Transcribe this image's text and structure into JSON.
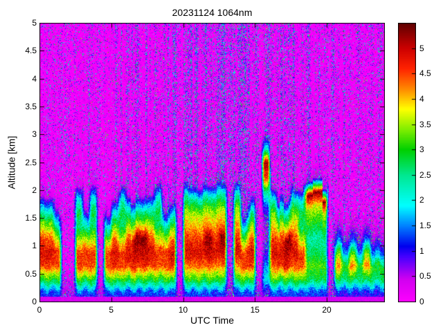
{
  "chart_data": {
    "type": "heatmap",
    "title": "20231124 1064nm",
    "xlabel": "UTC Time",
    "ylabel": "Altitude [km]",
    "x_range": [
      0,
      24
    ],
    "y_range": [
      0,
      5
    ],
    "x_ticks": [
      0,
      5,
      10,
      15,
      20
    ],
    "x_tick_labels": [
      "0",
      "5",
      "10",
      "15",
      "20"
    ],
    "y_ticks": [
      0,
      0.5,
      1,
      1.5,
      2,
      2.5,
      3,
      3.5,
      4,
      4.5,
      5
    ],
    "y_tick_labels": [
      "0",
      "0.5",
      "1",
      "1.5",
      "2",
      "2.5",
      "3",
      "3.5",
      "4",
      "4.5",
      "5"
    ],
    "colorbar": {
      "min": 0,
      "max": 5.5,
      "ticks": [
        0,
        0.5,
        1,
        1.5,
        2,
        2.5,
        3,
        3.5,
        4,
        4.5,
        5
      ],
      "tick_labels": [
        "0",
        "0.5",
        "1",
        "1.5",
        "2",
        "2.5",
        "3",
        "3.5",
        "4",
        "4.5",
        "5"
      ]
    },
    "colormap_stops": [
      [
        0.0,
        "#ff00ff"
      ],
      [
        0.45,
        "#d100f0"
      ],
      [
        0.9,
        "#4400ff"
      ],
      [
        1.1,
        "#0000ee"
      ],
      [
        1.5,
        "#0080ff"
      ],
      [
        1.9,
        "#00ffff"
      ],
      [
        2.5,
        "#00e890"
      ],
      [
        3.0,
        "#00d000"
      ],
      [
        3.4,
        "#80ee00"
      ],
      [
        3.8,
        "#ffff00"
      ],
      [
        4.2,
        "#ff8800"
      ],
      [
        4.6,
        "#ff2200"
      ],
      [
        5.0,
        "#cc0000"
      ],
      [
        5.5,
        "#5c0000"
      ]
    ],
    "grid": {
      "time_step_hours": 0.5,
      "alt_step_km": 0.25,
      "profiles": {
        "deep": [
          1.2,
          3,
          4.6,
          4.9,
          4.4,
          3.3,
          2,
          0.3,
          0.12,
          0.12,
          0.12,
          0.12,
          0.12,
          0.12,
          0.12,
          0.12,
          0.12,
          0.12,
          0.12,
          0.12
        ],
        "deepC": [
          1.2,
          3,
          4.7,
          5,
          5.3,
          3.6,
          2.2,
          0.4,
          0.12,
          0.12,
          0.12,
          0.12,
          0.12,
          0.12,
          0.12,
          0.12,
          0.12,
          0.12,
          0.12,
          0.12
        ],
        "med": [
          1.2,
          3,
          4.5,
          4.6,
          3.4,
          2,
          0.4,
          0.12,
          0.12,
          0.12,
          0.12,
          0.12,
          0.12,
          0.12,
          0.12,
          0.12,
          0.12,
          0.12,
          0.12,
          0.12
        ],
        "high": [
          1.2,
          3,
          4.3,
          4.9,
          4.6,
          4,
          3.4,
          2.2,
          0.3,
          0.12,
          0.12,
          0.12,
          0.12,
          0.12,
          0.12,
          0.12,
          0.12,
          0.12,
          0.12,
          0.12
        ],
        "highC": [
          1.2,
          3,
          4.4,
          5,
          5.3,
          4.2,
          3.5,
          2.3,
          0.3,
          0.12,
          0.12,
          0.12,
          0.12,
          0.12,
          0.12,
          0.12,
          0.12,
          0.12,
          0.12,
          0.12
        ],
        "spike": [
          1.2,
          3,
          4.5,
          4.6,
          3.6,
          2.6,
          2.8,
          2,
          0.3,
          0.12,
          0.12,
          0.12,
          0.12,
          0.12,
          0.12,
          0.12,
          0.12,
          0.12,
          0.12,
          0.12
        ],
        "low": [
          1,
          2.6,
          3,
          1.4,
          0.5,
          0.2,
          0.12,
          0.12,
          0.12,
          0.12,
          0.12,
          0.12,
          0.12,
          0.12,
          0.12,
          0.12,
          0.12,
          0.12,
          0.12,
          0.12
        ],
        "lowR": [
          1,
          2.8,
          4.3,
          3.2,
          1.2,
          0.4,
          0.12,
          0.12,
          0.12,
          0.12,
          0.12,
          0.12,
          0.12,
          0.12,
          0.12,
          0.12,
          0.12,
          0.12,
          0.12,
          0.12
        ],
        "gap": [
          0.5,
          0.3,
          0.05,
          0.05,
          0.05,
          0.05,
          0.05,
          0.05,
          0.05,
          0.05,
          0.05,
          0.05,
          0.05,
          0.05,
          0.05,
          0.05,
          0.05,
          0.05,
          0.05,
          0.05
        ],
        "cloud19": [
          1.2,
          2.8,
          3.2,
          2.6,
          2.4,
          3,
          3.6,
          5.3,
          0.5,
          0.12,
          0.12,
          0.12,
          0.12,
          0.12,
          0.12,
          0.12,
          0.12,
          0.12,
          0.12,
          0.12
        ],
        "cloud15": [
          0.8,
          2,
          1.5,
          0.8,
          0.5,
          0.6,
          1.2,
          2.5,
          4.6,
          5.2,
          2,
          0.3,
          0.12,
          0.12,
          0.12,
          0.12,
          0.12,
          0.12,
          0.12,
          0.12
        ]
      },
      "columns": [
        "deep",
        "deep",
        "med",
        "gap",
        "gap",
        "spike",
        "med",
        "spike",
        "gap",
        "med",
        "deep",
        "spike",
        "deep",
        "deepC",
        "deepC",
        "deep",
        "spike",
        "med",
        "deep",
        "gap",
        "high",
        "high",
        "high",
        "highC",
        "high",
        "highC",
        "gap",
        "high",
        "med",
        "deep",
        "gap",
        "cloud15",
        "high",
        "deep",
        "deepC",
        "high",
        "spike",
        "cloud19",
        "cloud19",
        "cloud19",
        "gap",
        "lowR",
        "low",
        "lowR",
        "low",
        "lowR",
        "low",
        "low"
      ]
    },
    "texture": {
      "seed": 20231124,
      "speckle_amp": 2.9,
      "background_noise": 0.3,
      "layer_noise": 0.85
    }
  }
}
